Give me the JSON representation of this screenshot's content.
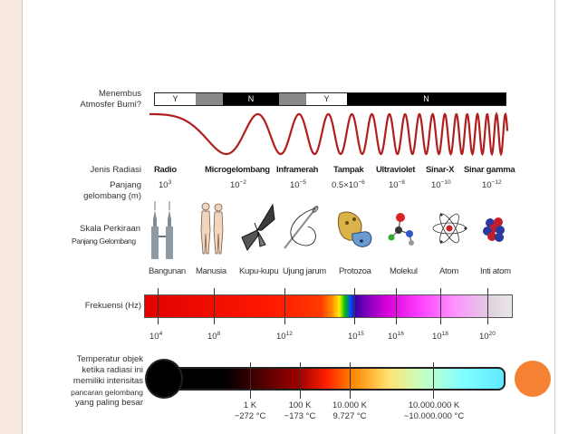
{
  "row_labels": {
    "atmosphere_line1": "Menembus",
    "atmosphere_line2": "Atmosfer Bumi?",
    "radiation_type": "Jenis Radiasi",
    "wavelength_line1": "Panjang",
    "wavelength_line2": "gelombang (m)",
    "scale_line1": "Skala Perkiraan",
    "scale_line2": "Panjang Gelombang",
    "frequency": "Frekuensi (Hz)",
    "temp_line1": "Temperatur objek",
    "temp_line2": "ketika radiasi ini",
    "temp_line3": "memiliki intensitas",
    "temp_line4": "pancaran gelombang",
    "temp_line5": "yang paling besar"
  },
  "atmosphere": {
    "segments": [
      {
        "label": "Y",
        "color": "#ffffff",
        "text_color": "#222222"
      },
      {
        "label": "",
        "color": "#888888"
      },
      {
        "label": "N",
        "color": "#000000"
      },
      {
        "label": "",
        "color": "#888888"
      },
      {
        "label": "Y",
        "color": "#ffffff",
        "text_color": "#222222"
      },
      {
        "label": "N",
        "color": "#000000"
      }
    ]
  },
  "radiation_types": [
    "Radio",
    "Microgelombang",
    "Inframerah",
    "Tampak",
    "Ultraviolet",
    "Sinar-X",
    "Sinar gamma"
  ],
  "wavelengths": [
    {
      "base": "10",
      "exp": "3"
    },
    {
      "base": "10",
      "exp": "−2"
    },
    {
      "base": "10",
      "exp": "−5"
    },
    {
      "base": "0.5×10",
      "exp": "−6"
    },
    {
      "base": "10",
      "exp": "−8"
    },
    {
      "base": "10",
      "exp": "−10"
    },
    {
      "base": "10",
      "exp": "−12"
    }
  ],
  "scale_objects": [
    "Bangunan",
    "Manusia",
    "Kupu-kupu",
    "Ujung jarum",
    "Protozoa",
    "Molekul",
    "Atom",
    "Inti atom"
  ],
  "frequencies": [
    {
      "base": "10",
      "exp": "4"
    },
    {
      "base": "10",
      "exp": "8"
    },
    {
      "base": "10",
      "exp": "12"
    },
    {
      "base": "10",
      "exp": "15"
    },
    {
      "base": "10",
      "exp": "16"
    },
    {
      "base": "10",
      "exp": "18"
    },
    {
      "base": "10",
      "exp": "20"
    }
  ],
  "temperatures": [
    {
      "kelvin": "1 K",
      "celsius": "−272 °C"
    },
    {
      "kelvin": "100 K",
      "celsius": "−173 °C"
    },
    {
      "kelvin": "10.000 K",
      "celsius": "9.727 °C"
    },
    {
      "kelvin": "10.000.000 K",
      "celsius": "~10.000.000 °C"
    }
  ],
  "colors": {
    "wave": "#b01e1e",
    "accent_orange": "#f58233",
    "frame": "#f7e9e1"
  }
}
